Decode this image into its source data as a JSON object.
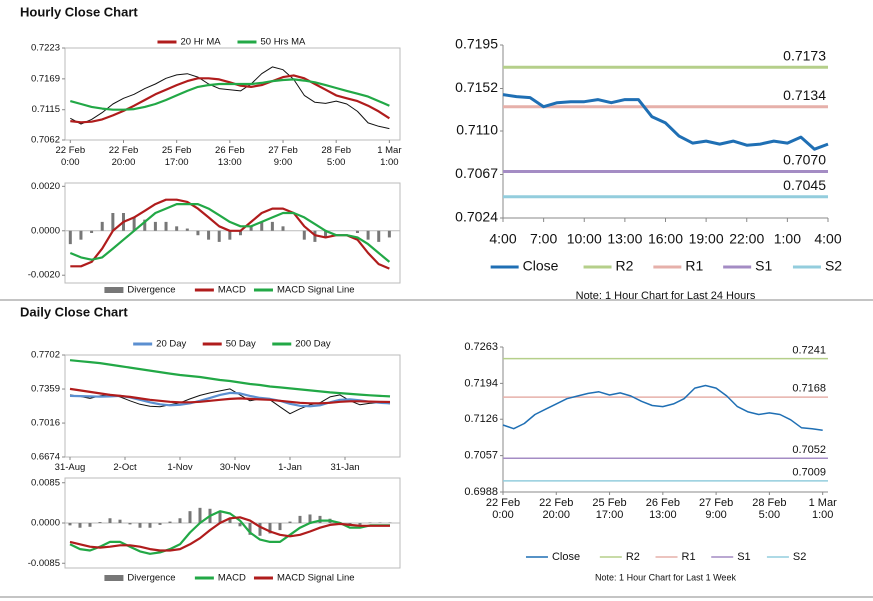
{
  "sections": [
    "Hourly Close Chart",
    "Daily Close Chart"
  ],
  "chart_data": [
    {
      "type": "line",
      "x": [
        0,
        4,
        8,
        12,
        16,
        20,
        24,
        28,
        32,
        36,
        40,
        44,
        48,
        52,
        56,
        60,
        64,
        68,
        72,
        76,
        80,
        84,
        88,
        92,
        96,
        100,
        104,
        108,
        112,
        116,
        120
      ],
      "values": [
        0.71,
        0.709,
        0.7098,
        0.711,
        0.7125,
        0.7135,
        0.7142,
        0.7152,
        0.716,
        0.717,
        0.7176,
        0.7178,
        0.7172,
        0.716,
        0.7152,
        0.715,
        0.7148,
        0.716,
        0.7178,
        0.719,
        0.7185,
        0.7168,
        0.714,
        0.7128,
        0.7126,
        0.713,
        0.7125,
        0.7112,
        0.7092,
        0.7086,
        0.7082
      ],
      "color": "#111111",
      "series": [
        {
          "name": "20 Hr MA",
          "color": "#b01c1c",
          "values": [
            0.7095,
            0.7093,
            0.7094,
            0.7098,
            0.7105,
            0.7113,
            0.7122,
            0.7132,
            0.7142,
            0.715,
            0.7158,
            0.7165,
            0.717,
            0.717,
            0.7168,
            0.7163,
            0.7157,
            0.7155,
            0.7158,
            0.7165,
            0.7172,
            0.7175,
            0.717,
            0.716,
            0.715,
            0.714,
            0.7135,
            0.713,
            0.7122,
            0.7112,
            0.71
          ]
        },
        {
          "name": "50 Hrs MA",
          "color": "#22a846",
          "values": [
            0.713,
            0.7125,
            0.712,
            0.7117,
            0.7115,
            0.7115,
            0.7116,
            0.712,
            0.7125,
            0.7132,
            0.714,
            0.7148,
            0.7155,
            0.7158,
            0.716,
            0.716,
            0.716,
            0.716,
            0.7162,
            0.7165,
            0.7167,
            0.7168,
            0.7166,
            0.7163,
            0.7158,
            0.7153,
            0.7148,
            0.7143,
            0.7138,
            0.713,
            0.7122
          ]
        }
      ],
      "xlim": [
        -2,
        124
      ],
      "xticks": [
        {
          "value": 0,
          "label": "22 Feb\n0:00"
        },
        {
          "value": 20,
          "label": "22 Feb\n20:00"
        },
        {
          "value": 40,
          "label": "25 Feb\n17:00"
        },
        {
          "value": 60,
          "label": "26 Feb\n13:00"
        },
        {
          "value": 80,
          "label": "27 Feb\n9:00"
        },
        {
          "value": 100,
          "label": "28 Feb\n5:00"
        },
        {
          "value": 120,
          "label": "1 Mar\n1:00"
        }
      ],
      "ylim": [
        0.7062,
        0.7223
      ],
      "yticks": [
        0.7062,
        0.7115,
        0.7169,
        0.7223
      ],
      "legend": "top"
    },
    {
      "type": "combo",
      "x": [
        0,
        4,
        8,
        12,
        16,
        20,
        24,
        28,
        32,
        36,
        40,
        44,
        48,
        52,
        56,
        60,
        64,
        68,
        72,
        76,
        80,
        84,
        88,
        92,
        96,
        100,
        104,
        108,
        112,
        116,
        120
      ],
      "series": [
        {
          "name": "Divergence",
          "type": "bar",
          "color": "#777777",
          "values": [
            -0.0006,
            -0.0004,
            -0.0001,
            0.0004,
            0.0008,
            0.0008,
            0.0006,
            0.0005,
            0.0004,
            0.0004,
            0.0002,
            0.0001,
            -0.0002,
            -0.0004,
            -0.0005,
            -0.0004,
            -0.0002,
            0.0002,
            0.0004,
            0.0004,
            0.0002,
            0.0,
            -0.0004,
            -0.0005,
            -0.0003,
            0.0,
            0.0,
            -0.0001,
            -0.0004,
            -0.0005,
            -0.0003
          ]
        },
        {
          "name": "MACD",
          "color": "#b01c1c",
          "values": [
            -0.0016,
            -0.0016,
            -0.0014,
            -0.0008,
            0.0,
            0.0004,
            0.0006,
            0.0009,
            0.0012,
            0.0014,
            0.0014,
            0.0013,
            0.001,
            0.0006,
            0.0002,
            0.0,
            0.0,
            0.0004,
            0.0008,
            0.001,
            0.001,
            0.0008,
            0.0002,
            -0.0002,
            -0.0003,
            -0.0002,
            -0.0002,
            -0.0004,
            -0.001,
            -0.0015,
            -0.0017
          ]
        },
        {
          "name": "MACD Signal Line",
          "color": "#22a846",
          "values": [
            -0.001,
            -0.0012,
            -0.0013,
            -0.0012,
            -0.0008,
            -0.0004,
            0.0,
            0.0004,
            0.0008,
            0.001,
            0.0012,
            0.0012,
            0.0012,
            0.001,
            0.0007,
            0.0004,
            0.0002,
            0.0002,
            0.0004,
            0.0006,
            0.0008,
            0.0008,
            0.0006,
            0.0003,
            0.0,
            -0.0002,
            -0.0002,
            -0.0003,
            -0.0006,
            -0.001,
            -0.0014
          ]
        }
      ],
      "xlim": [
        -2,
        124
      ],
      "ylim": [
        -0.00235,
        0.00215
      ],
      "yticks": [
        {
          "value": 0.002,
          "label": "0.0020"
        },
        {
          "value": 0,
          "label": "0.0000"
        },
        {
          "value": -0.002,
          "label": "-0.0020"
        }
      ],
      "legend": "bottom"
    },
    {
      "type": "line",
      "categories": [
        "4:00",
        null,
        null,
        "7:00",
        null,
        null,
        "10:00",
        null,
        null,
        "13:00",
        null,
        null,
        "16:00",
        null,
        null,
        "19:00",
        null,
        null,
        "22:00",
        null,
        null,
        "1:00",
        null,
        null,
        "4:00"
      ],
      "series": [
        {
          "name": "Close",
          "color": "#1f6fb4",
          "values": [
            0.7146,
            0.7144,
            0.7143,
            0.7134,
            0.7138,
            0.7139,
            0.7139,
            0.7141,
            0.7138,
            0.7141,
            0.7141,
            0.7124,
            0.7118,
            0.7105,
            0.7098,
            0.71,
            0.7097,
            0.71,
            0.7096,
            0.7097,
            0.71,
            0.7098,
            0.7104,
            0.7092,
            0.7097
          ]
        }
      ],
      "levels": [
        {
          "name": "R2",
          "color": "#b5cf8a",
          "value": 0.7173,
          "label": "0.7173"
        },
        {
          "name": "R1",
          "color": "#e6b0aa",
          "value": 0.7134,
          "label": "0.7134"
        },
        {
          "name": "S1",
          "color": "#a48cc4",
          "value": 0.707,
          "label": "0.7070"
        },
        {
          "name": "S2",
          "color": "#93cddd",
          "value": 0.7045,
          "label": "0.7045"
        }
      ],
      "ylim": [
        0.7024,
        0.7195
      ],
      "yticks": [
        0.7024,
        0.7067,
        {
          "value": 0.711,
          "label": "0.7110"
        },
        0.7152,
        0.7195
      ],
      "legend": "bottom",
      "note": "Note: 1 Hour Chart for Last 24 Hours"
    },
    {
      "type": "line",
      "x": [
        0,
        4,
        8,
        12,
        16,
        20,
        24,
        28,
        32,
        36,
        40,
        44,
        48,
        52,
        56,
        60,
        64,
        68,
        72,
        76,
        80,
        84,
        88,
        92,
        96,
        100,
        104,
        108,
        112,
        116,
        120,
        124,
        128
      ],
      "values": [
        0.73,
        0.7285,
        0.7265,
        0.729,
        0.7305,
        0.728,
        0.724,
        0.7205,
        0.7185,
        0.718,
        0.72,
        0.722,
        0.726,
        0.7295,
        0.732,
        0.734,
        0.736,
        0.73,
        0.724,
        0.726,
        0.725,
        0.718,
        0.711,
        0.716,
        0.72,
        0.722,
        0.728,
        0.73,
        0.724,
        0.72,
        0.7215,
        0.722,
        0.721
      ],
      "color": "#111111",
      "series": [
        {
          "name": "20 Day",
          "color": "#5b8fd0",
          "values": [
            0.729,
            0.7288,
            0.7285,
            0.7282,
            0.7285,
            0.729,
            0.7275,
            0.725,
            0.7225,
            0.7205,
            0.7195,
            0.72,
            0.7215,
            0.724,
            0.727,
            0.73,
            0.732,
            0.7315,
            0.729,
            0.727,
            0.726,
            0.724,
            0.721,
            0.719,
            0.7185,
            0.7195,
            0.7225,
            0.725,
            0.7255,
            0.7245,
            0.723,
            0.722,
            0.7215
          ]
        },
        {
          "name": "50 Day",
          "color": "#b01c1c",
          "values": [
            0.736,
            0.7345,
            0.733,
            0.7315,
            0.73,
            0.729,
            0.728,
            0.7265,
            0.725,
            0.724,
            0.723,
            0.7225,
            0.7225,
            0.723,
            0.724,
            0.725,
            0.726,
            0.7265,
            0.726,
            0.7255,
            0.725,
            0.724,
            0.723,
            0.722,
            0.7215,
            0.7215,
            0.722,
            0.723,
            0.7235,
            0.7235,
            0.7232,
            0.723,
            0.7228
          ]
        },
        {
          "name": "200 Day",
          "color": "#22a846",
          "values": [
            0.765,
            0.764,
            0.763,
            0.762,
            0.7605,
            0.759,
            0.7575,
            0.756,
            0.7545,
            0.753,
            0.7515,
            0.75,
            0.749,
            0.748,
            0.7465,
            0.745,
            0.744,
            0.7425,
            0.741,
            0.74,
            0.7385,
            0.7375,
            0.7365,
            0.7355,
            0.7345,
            0.7335,
            0.7325,
            0.7318,
            0.731,
            0.7303,
            0.7296,
            0.729,
            0.7285
          ]
        }
      ],
      "xlim": [
        -2,
        132
      ],
      "xticks": [
        {
          "value": 0,
          "label": "31-Aug"
        },
        {
          "value": 22,
          "label": "2-Oct"
        },
        {
          "value": 44,
          "label": "1-Nov"
        },
        {
          "value": 66,
          "label": "30-Nov"
        },
        {
          "value": 88,
          "label": "1-Jan"
        },
        {
          "value": 110,
          "label": "31-Jan"
        }
      ],
      "ylim": [
        0.6674,
        0.7702
      ],
      "yticks": [
        0.6674,
        0.7016,
        0.7359,
        0.7702
      ],
      "legend": "top"
    },
    {
      "type": "combo",
      "x": [
        0,
        4,
        8,
        12,
        16,
        20,
        24,
        28,
        32,
        36,
        40,
        44,
        48,
        52,
        56,
        60,
        64,
        68,
        72,
        76,
        80,
        84,
        88,
        92,
        96,
        100,
        104,
        108,
        112,
        116,
        120,
        124,
        128
      ],
      "series": [
        {
          "name": "Divergence",
          "type": "bar",
          "color": "#777777",
          "values": [
            -0.0005,
            -0.001,
            -0.0008,
            0.0002,
            0.001,
            0.0007,
            -0.0003,
            -0.001,
            -0.001,
            -0.0004,
            0.0003,
            0.001,
            0.0025,
            0.0032,
            0.003,
            0.0025,
            0.001,
            -0.0007,
            -0.0025,
            -0.0027,
            -0.0022,
            -0.0015,
            0.0003,
            0.0015,
            0.0018,
            0.0015,
            0.0009,
            0.0002,
            -0.0006,
            -0.0004,
            0.0001,
            0.0001,
            0.0001
          ]
        },
        {
          "name": "MACD",
          "color": "#22a846",
          "values": [
            -0.0045,
            -0.0055,
            -0.0058,
            -0.005,
            -0.004,
            -0.004,
            -0.005,
            -0.006,
            -0.0065,
            -0.0062,
            -0.0055,
            -0.0045,
            -0.002,
            0.0,
            0.0015,
            0.0025,
            0.002,
            0.0005,
            -0.002,
            -0.0035,
            -0.004,
            -0.004,
            -0.0025,
            -0.001,
            0.0,
            0.0005,
            0.0005,
            0.0,
            -0.001,
            -0.001,
            -0.0005,
            -0.0005,
            -0.0005
          ]
        },
        {
          "name": "MACD Signal Line",
          "color": "#b01c1c",
          "values": [
            -0.004,
            -0.0045,
            -0.005,
            -0.0052,
            -0.005,
            -0.0047,
            -0.0047,
            -0.005,
            -0.0055,
            -0.0058,
            -0.0058,
            -0.0055,
            -0.0045,
            -0.0032,
            -0.0015,
            0.0,
            0.001,
            0.0012,
            0.0005,
            -0.0008,
            -0.0018,
            -0.0025,
            -0.0028,
            -0.0025,
            -0.0018,
            -0.001,
            -0.0004,
            -0.0002,
            -0.0004,
            -0.0006,
            -0.0006,
            -0.0006,
            -0.0006
          ]
        }
      ],
      "xlim": [
        -2,
        132
      ],
      "ylim": [
        -0.0095,
        0.0095
      ],
      "yticks": [
        0.0085,
        {
          "value": 0,
          "label": "0.0000"
        },
        -0.0085
      ],
      "legend": "bottom"
    },
    {
      "type": "line",
      "x": [
        0,
        4,
        8,
        12,
        16,
        20,
        24,
        28,
        32,
        36,
        40,
        44,
        48,
        52,
        56,
        60,
        64,
        68,
        72,
        76,
        80,
        84,
        88,
        92,
        96,
        100,
        104,
        108,
        112,
        116,
        120
      ],
      "series": [
        {
          "name": "Close",
          "color": "#1f6fb4",
          "values": [
            0.7115,
            0.7108,
            0.7118,
            0.7135,
            0.7145,
            0.7155,
            0.7165,
            0.717,
            0.7175,
            0.7178,
            0.7172,
            0.7176,
            0.717,
            0.716,
            0.7152,
            0.715,
            0.7155,
            0.7165,
            0.7185,
            0.719,
            0.7185,
            0.717,
            0.715,
            0.714,
            0.7135,
            0.7138,
            0.7135,
            0.7125,
            0.711,
            0.7108,
            0.7105
          ]
        }
      ],
      "levels": [
        {
          "name": "R2",
          "color": "#b5cf8a",
          "value": 0.7241,
          "label": "0.7241"
        },
        {
          "name": "R1",
          "color": "#e6b0aa",
          "value": 0.7168,
          "label": "0.7168"
        },
        {
          "name": "S1",
          "color": "#a48cc4",
          "value": 0.7052,
          "label": "0.7052"
        },
        {
          "name": "S2",
          "color": "#93cddd",
          "value": 0.7009,
          "label": "0.7009"
        }
      ],
      "xlim": [
        0,
        122
      ],
      "xticks": [
        {
          "value": 0,
          "label": "22 Feb\n0:00"
        },
        {
          "value": 20,
          "label": "22 Feb\n20:00"
        },
        {
          "value": 40,
          "label": "25 Feb\n17:00"
        },
        {
          "value": 60,
          "label": "26 Feb\n13:00"
        },
        {
          "value": 80,
          "label": "27 Feb\n9:00"
        },
        {
          "value": 100,
          "label": "28 Feb\n5:00"
        },
        {
          "value": 120,
          "label": "1 Mar\n1:00"
        }
      ],
      "ylim": [
        0.6988,
        0.7263
      ],
      "yticks": [
        0.6988,
        0.7057,
        0.7126,
        0.7194,
        0.7263
      ],
      "legend": "bottom",
      "note": "Note: 1 Hour Chart for Last 1 Week"
    }
  ]
}
